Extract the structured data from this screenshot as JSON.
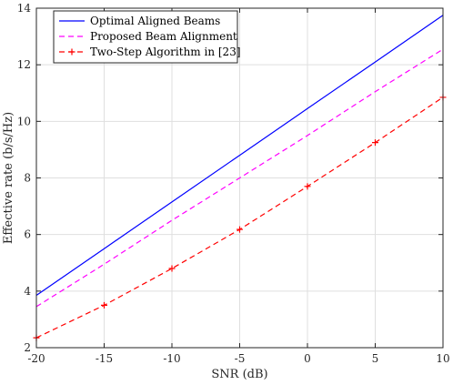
{
  "chart_data": {
    "type": "line",
    "xlabel": "SNR (dB)",
    "ylabel": "Effective rate (b/s/Hz)",
    "xlim": [
      -20,
      10
    ],
    "ylim": [
      2,
      14
    ],
    "xticks": [
      -20,
      -15,
      -10,
      -5,
      0,
      5,
      10
    ],
    "yticks": [
      2,
      4,
      6,
      8,
      10,
      12,
      14
    ],
    "grid": true,
    "legend_position": "top-left",
    "series": [
      {
        "name": "Optimal Aligned Beams",
        "color": "#0000ff",
        "line_style": "solid",
        "marker": "none",
        "x": [
          -20,
          -15,
          -10,
          -5,
          0,
          5,
          10
        ],
        "y": [
          3.85,
          5.5,
          7.15,
          8.8,
          10.45,
          12.1,
          13.75
        ]
      },
      {
        "name": "Proposed Beam Alignment",
        "color": "#ff00ff",
        "line_style": "dashed",
        "marker": "none",
        "x": [
          -20,
          -15,
          -10,
          -5,
          0,
          5,
          10
        ],
        "y": [
          3.45,
          4.95,
          6.5,
          8.0,
          9.5,
          11.05,
          12.55
        ]
      },
      {
        "name": "Two-Step Algorithm in [23]",
        "color": "#ff0000",
        "line_style": "dashed",
        "marker": "plus",
        "x": [
          -20,
          -15,
          -10,
          -5,
          0,
          5,
          10
        ],
        "y": [
          2.35,
          3.5,
          4.8,
          6.18,
          7.7,
          9.25,
          10.85
        ]
      }
    ]
  }
}
